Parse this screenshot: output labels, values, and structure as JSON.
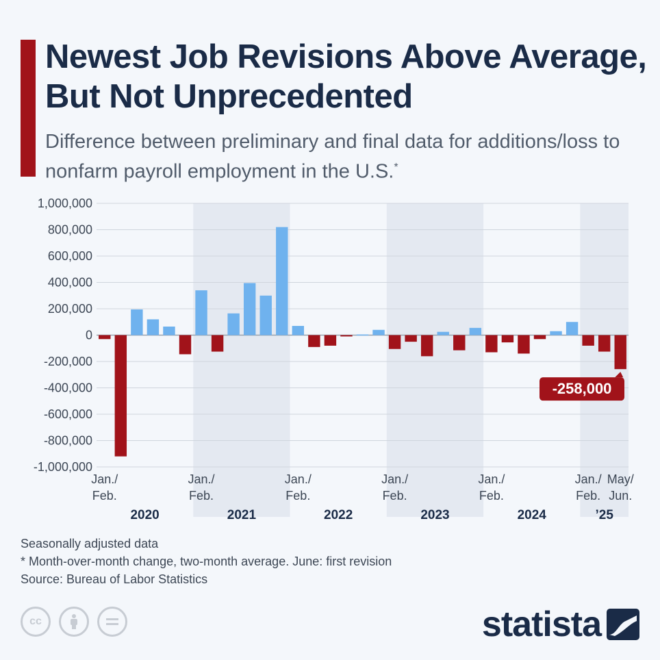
{
  "header": {
    "title": "Newest Job Revisions Above Average, But Not Unprecedented",
    "subtitle": "Difference between preliminary and final data for additions/loss to nonfarm payroll employment in the U.S.",
    "subtitle_mark": "*"
  },
  "notes": {
    "line1": "Seasonally adjusted data",
    "line2": "* Month-over-month change, two-month average. June: first revision",
    "source": "Source: Bureau of Labor Statistics"
  },
  "footer": {
    "license_icons": [
      "cc-icon",
      "attribution-icon",
      "no-derivatives-icon"
    ],
    "cc_label": "cc",
    "logo_text": "statista"
  },
  "chart_data": {
    "type": "bar",
    "title": "Newest Job Revisions Above Average, But Not Unprecedented",
    "subtitle": "Difference between preliminary and final data for additions/loss to nonfarm payroll employment in the U.S.*",
    "ylim": [
      -1000000,
      1000000
    ],
    "yticks": [
      1000000,
      800000,
      600000,
      400000,
      200000,
      0,
      -200000,
      -400000,
      -600000,
      -800000,
      -1000000
    ],
    "ytick_labels": [
      "1,000,000",
      "800,000",
      "600,000",
      "400,000",
      "200,000",
      "0",
      "-200,000",
      "-400,000",
      "-600,000",
      "-800,000",
      "-1,000,000"
    ],
    "categories": [
      "Jan./Feb. 2020",
      "Mar./Apr. 2020",
      "May/Jun. 2020",
      "Jul./Aug. 2020",
      "Sep./Oct. 2020",
      "Nov./Dec. 2020",
      "Jan./Feb. 2021",
      "Mar./Apr. 2021",
      "May/Jun. 2021",
      "Jul./Aug. 2021",
      "Sep./Oct. 2021",
      "Nov./Dec. 2021",
      "Jan./Feb. 2022",
      "Mar./Apr. 2022",
      "May/Jun. 2022",
      "Jul./Aug. 2022",
      "Sep./Oct. 2022",
      "Nov./Dec. 2022",
      "Jan./Feb. 2023",
      "Mar./Apr. 2023",
      "May/Jun. 2023",
      "Jul./Aug. 2023",
      "Sep./Oct. 2023",
      "Nov./Dec. 2023",
      "Jan./Feb. 2024",
      "Mar./Apr. 2024",
      "May/Jun. 2024",
      "Jul./Aug. 2024",
      "Sep./Oct. 2024",
      "Nov./Dec. 2024",
      "Jan./Feb. 2025",
      "Mar./Apr. 2025",
      "May/Jun. 2025"
    ],
    "values": [
      -30000,
      -920000,
      195000,
      120000,
      65000,
      -145000,
      340000,
      -125000,
      165000,
      395000,
      300000,
      820000,
      70000,
      -90000,
      -80000,
      -10000,
      5000,
      40000,
      -105000,
      -50000,
      -160000,
      25000,
      -115000,
      55000,
      -130000,
      -55000,
      -140000,
      -30000,
      30000,
      100000,
      -80000,
      -125000,
      -258000
    ],
    "colors": {
      "positive": "#6fb2ee",
      "negative": "#a1131a",
      "year_band": "#e4e9f1"
    },
    "x_tick_labels": [
      {
        "index": 0,
        "line1": "Jan./",
        "line2": "Feb."
      },
      {
        "index": 6,
        "line1": "Jan./",
        "line2": "Feb."
      },
      {
        "index": 12,
        "line1": "Jan./",
        "line2": "Feb."
      },
      {
        "index": 18,
        "line1": "Jan./",
        "line2": "Feb."
      },
      {
        "index": 24,
        "line1": "Jan./",
        "line2": "Feb."
      },
      {
        "index": 30,
        "line1": "Jan./",
        "line2": "Feb."
      },
      {
        "index": 32,
        "line1": "May/",
        "line2": "Jun."
      }
    ],
    "years": [
      {
        "label": "2020",
        "start": 0,
        "end": 5,
        "shaded": false
      },
      {
        "label": "2021",
        "start": 6,
        "end": 11,
        "shaded": true
      },
      {
        "label": "2022",
        "start": 12,
        "end": 17,
        "shaded": false
      },
      {
        "label": "2023",
        "start": 18,
        "end": 23,
        "shaded": true
      },
      {
        "label": "2024",
        "start": 24,
        "end": 29,
        "shaded": false
      },
      {
        "label": "’25",
        "start": 30,
        "end": 32,
        "shaded": true
      }
    ],
    "annotation": {
      "index": 32,
      "text": "-258,000"
    },
    "grid": true,
    "legend": "none"
  }
}
